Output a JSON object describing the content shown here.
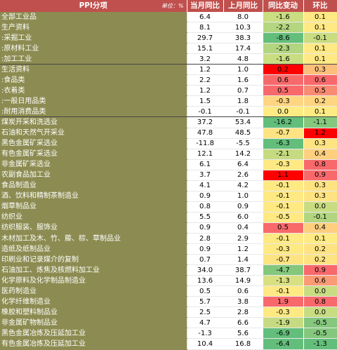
{
  "header": {
    "name": "PPI分项",
    "unit": "单位：%",
    "cur": "当月同比",
    "prev": "上月同比",
    "chg": "同比变动",
    "mom": "环比"
  },
  "colors": {
    "header_bg": "#c0504d",
    "name_bg": "#8c8c52",
    "deep_red": "#ff0000",
    "light_red": "#f8696b",
    "yellow": "#ffeb84",
    "light_green": "#b1d580",
    "green": "#63be7b"
  },
  "rows": [
    {
      "name": "全部工业品",
      "cur": "6.4",
      "prev": "8.0",
      "chg": "-1.6",
      "mom": "0.1",
      "chg_color": "#c9dd81",
      "mom_color": "#ffe984"
    },
    {
      "name": "生产资料",
      "cur": "8.1",
      "prev": "10.3",
      "chg": "-2.2",
      "mom": "0.1",
      "chg_color": "#b5d680",
      "mom_color": "#ffe984"
    },
    {
      "name": ":采掘工业",
      "cur": "29.7",
      "prev": "38.3",
      "chg": "-8.6",
      "mom": "-0.1",
      "chg_color": "#63be7b",
      "mom_color": "#c8dc81"
    },
    {
      "name": ":原材料工业",
      "cur": "15.1",
      "prev": "17.4",
      "chg": "-2.3",
      "mom": "0.1",
      "chg_color": "#b2d580",
      "mom_color": "#ffe984"
    },
    {
      "name": ":加工工业",
      "cur": "3.2",
      "prev": "4.8",
      "chg": "-1.6",
      "mom": "0.1",
      "chg_color": "#c9dd81",
      "mom_color": "#ffe984",
      "sep": true
    },
    {
      "name": "生活资料",
      "cur": "1.2",
      "prev": "1.0",
      "chg": "0.2",
      "mom": "0.3",
      "chg_color": "#ff0000",
      "mom_color": "#fcbf7b"
    },
    {
      "name": ":食品类",
      "cur": "2.2",
      "prev": "1.6",
      "chg": "0.6",
      "mom": "0.6",
      "chg_color": "#f8696b",
      "mom_color": "#f8696b"
    },
    {
      "name": ":衣着类",
      "cur": "1.2",
      "prev": "0.7",
      "chg": "0.5",
      "mom": "0.5",
      "chg_color": "#f8696b",
      "mom_color": "#f98b72"
    },
    {
      "name": ":一般日用品类",
      "cur": "1.5",
      "prev": "1.8",
      "chg": "-0.3",
      "mom": "0.2",
      "chg_color": "#fed580",
      "mom_color": "#fed580"
    },
    {
      "name": ":耐用消费品类",
      "cur": "-0.1",
      "prev": "-0.1",
      "chg": "0.0",
      "mom": "0.1",
      "chg_color": "#ffeb84",
      "mom_color": "#ffeb84",
      "sep": true
    },
    {
      "name": "煤炭开采和洗选业",
      "cur": "37.2",
      "prev": "53.4",
      "chg": "-16.2",
      "mom": "-1.1",
      "chg_color": "#63be7b",
      "mom_color": "#84c77d"
    },
    {
      "name": "石油和天然气开采业",
      "cur": "47.8",
      "prev": "48.5",
      "chg": "-0.7",
      "mom": "1.2",
      "chg_color": "#fee382",
      "mom_color": "#ff0000"
    },
    {
      "name": "黑色金属矿采选业",
      "cur": "-11.8",
      "prev": "-5.5",
      "chg": "-6.3",
      "mom": "0.3",
      "chg_color": "#63be7b",
      "mom_color": "#fee382"
    },
    {
      "name": "有色金属矿采选业",
      "cur": "12.1",
      "prev": "14.2",
      "chg": "-2.1",
      "mom": "0.4",
      "chg_color": "#c6db81",
      "mom_color": "#fdcf7f"
    },
    {
      "name": "非金属矿采选业",
      "cur": "6.1",
      "prev": "6.4",
      "chg": "-0.3",
      "mom": "0.8",
      "chg_color": "#fee983",
      "mom_color": "#f8696b"
    },
    {
      "name": "农副食品加工业",
      "cur": "3.7",
      "prev": "2.6",
      "chg": "1.1",
      "mom": "0.9",
      "chg_color": "#ff0000",
      "mom_color": "#f8696b"
    },
    {
      "name": "食品制造业",
      "cur": "4.1",
      "prev": "4.2",
      "chg": "-0.1",
      "mom": "0.3",
      "chg_color": "#fee983",
      "mom_color": "#fee382"
    },
    {
      "name": "酒、饮料和精制茶制造业",
      "cur": "0.9",
      "prev": "1.0",
      "chg": "-0.1",
      "mom": "0.3",
      "chg_color": "#fee983",
      "mom_color": "#fee382"
    },
    {
      "name": "烟草制品业",
      "cur": "0.8",
      "prev": "0.9",
      "chg": "-0.1",
      "mom": "0.0",
      "chg_color": "#fee983",
      "mom_color": "#c8dc81"
    },
    {
      "name": "纺织业",
      "cur": "5.5",
      "prev": "6.0",
      "chg": "-0.5",
      "mom": "-0.1",
      "chg_color": "#fee983",
      "mom_color": "#b2d580"
    },
    {
      "name": "纺织服装、服饰业",
      "cur": "0.9",
      "prev": "0.4",
      "chg": "0.5",
      "mom": "0.4",
      "chg_color": "#f8696b",
      "mom_color": "#fdcf7f"
    },
    {
      "name": "木材加工及木、竹、藤、棕、草制品业",
      "cur": "2.8",
      "prev": "2.9",
      "chg": "-0.1",
      "mom": "0.1",
      "chg_color": "#fee983",
      "mom_color": "#ffeb84"
    },
    {
      "name": "造纸及纸制品业",
      "cur": "0.9",
      "prev": "1.2",
      "chg": "-0.3",
      "mom": "0.2",
      "chg_color": "#fee983",
      "mom_color": "#fee382"
    },
    {
      "name": "印刷业和记录媒介的复制",
      "cur": "0.7",
      "prev": "1.4",
      "chg": "-0.7",
      "mom": "0.2",
      "chg_color": "#fee382",
      "mom_color": "#fee382"
    },
    {
      "name": "石油加工、炼焦及核燃料加工业",
      "cur": "34.0",
      "prev": "38.7",
      "chg": "-4.7",
      "mom": "0.9",
      "chg_color": "#84c77d",
      "mom_color": "#f8696b"
    },
    {
      "name": "化学原料及化学制品制造业",
      "cur": "13.6",
      "prev": "14.9",
      "chg": "-1.3",
      "mom": "0.6",
      "chg_color": "#d8e082",
      "mom_color": "#fa9b75"
    },
    {
      "name": "医药制造业",
      "cur": "0.5",
      "prev": "0.6",
      "chg": "-0.1",
      "mom": "0.0",
      "chg_color": "#fee983",
      "mom_color": "#c8dc81"
    },
    {
      "name": "化学纤维制造业",
      "cur": "5.7",
      "prev": "3.8",
      "chg": "1.9",
      "mom": "0.8",
      "chg_color": "#f8696b",
      "mom_color": "#f8696b"
    },
    {
      "name": "橡胶和塑料制品业",
      "cur": "2.5",
      "prev": "2.8",
      "chg": "-0.3",
      "mom": "0.0",
      "chg_color": "#fee983",
      "mom_color": "#c8dc81"
    },
    {
      "name": "非金属矿物制品业",
      "cur": "4.7",
      "prev": "6.6",
      "chg": "-1.9",
      "mom": "-0.5",
      "chg_color": "#c6db81",
      "mom_color": "#84c77d"
    },
    {
      "name": "黑色金属冶炼及压延加工业",
      "cur": "-1.3",
      "prev": "5.6",
      "chg": "-6.9",
      "mom": "-0.5",
      "chg_color": "#63be7b",
      "mom_color": "#84c77d"
    },
    {
      "name": "有色金属冶炼及压延加工业",
      "cur": "10.4",
      "prev": "16.8",
      "chg": "-6.4",
      "mom": "-1.3",
      "chg_color": "#63be7b",
      "mom_color": "#63be7b"
    }
  ]
}
